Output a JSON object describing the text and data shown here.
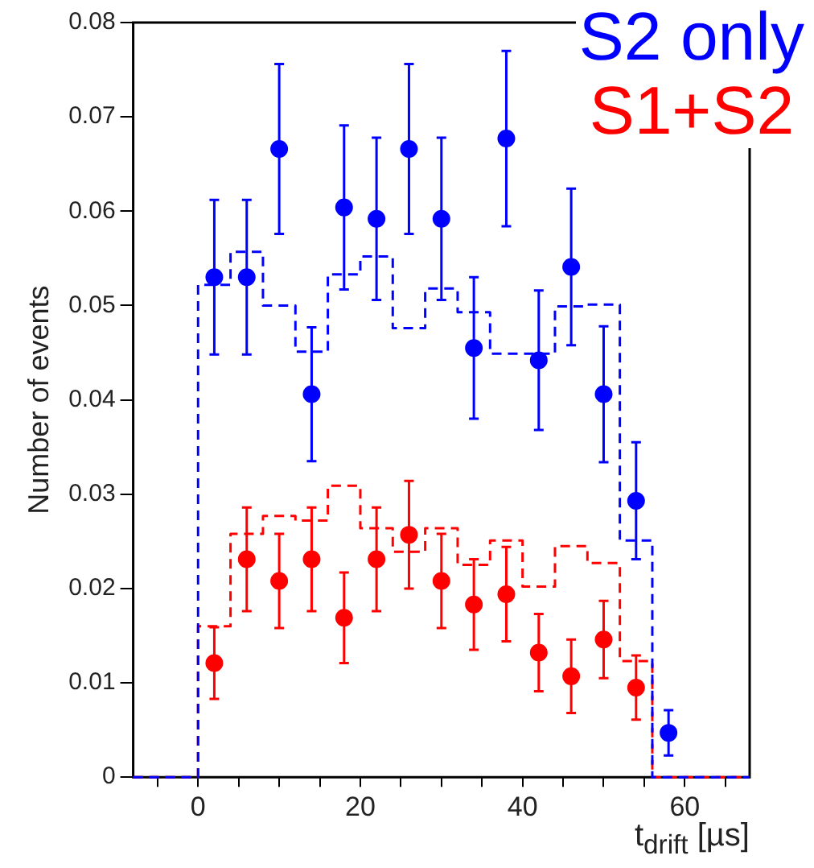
{
  "chart_data": {
    "type": "scatter",
    "xlabel": "t$_{drift}$ [µs]",
    "ylabel": "Number of events",
    "legend": "top right",
    "grid": false,
    "marker": "circle",
    "xlim": [
      -8,
      68
    ],
    "ylim": [
      0,
      0.08
    ],
    "xticks": [
      {
        "value": -5,
        "label": null
      },
      0,
      {
        "value": 5,
        "label": null
      },
      {
        "value": 10,
        "label": null
      },
      {
        "value": 15,
        "label": null
      },
      20,
      {
        "value": 25,
        "label": null
      },
      {
        "value": 30,
        "label": null
      },
      {
        "value": 35,
        "label": null
      },
      40,
      {
        "value": 45,
        "label": null
      },
      {
        "value": 50,
        "label": null
      },
      {
        "value": 55,
        "label": null
      },
      60,
      {
        "value": 65,
        "label": null
      }
    ],
    "yticks": [
      0,
      0.01,
      0.02,
      0.03,
      0.04,
      0.05,
      0.06,
      0.07,
      0.08
    ],
    "series": [
      {
        "type": "step",
        "marker": "none",
        "color": "#0000ff",
        "line_style": "dashed",
        "x": [
          -8,
          -4,
          0,
          4,
          8,
          12,
          16,
          20,
          24,
          28,
          32,
          36,
          40,
          44,
          48,
          52,
          56,
          60,
          64,
          68
        ],
        "values": [
          0,
          0,
          0.0522,
          0.0557,
          0.05,
          0.0451,
          0.0533,
          0.0552,
          0.0476,
          0.0518,
          0.0493,
          0.0449,
          0.0449,
          0.0499,
          0.0501,
          0.0251,
          0,
          0,
          0,
          0
        ]
      },
      {
        "type": "step",
        "marker": "none",
        "color": "#ff0000",
        "line_style": "dashed",
        "x": [
          -8,
          -4,
          0,
          4,
          8,
          12,
          16,
          20,
          24,
          28,
          32,
          36,
          40,
          44,
          48,
          52,
          56,
          60,
          64,
          68
        ],
        "values": [
          0,
          0,
          0.016,
          0.0258,
          0.0277,
          0.0272,
          0.0309,
          0.0264,
          0.0239,
          0.0264,
          0.0225,
          0.0251,
          0.0202,
          0.0245,
          0.0227,
          0.0123,
          0,
          0,
          0,
          0
        ]
      },
      {
        "name": "S2 only",
        "color": "#0000ff",
        "x": [
          2,
          6,
          10,
          14,
          18,
          22,
          26,
          30,
          34,
          38,
          42,
          46,
          50,
          54,
          58
        ],
        "values": [
          0.053,
          0.053,
          0.0666,
          0.0406,
          0.0604,
          0.0592,
          0.0666,
          0.0592,
          0.0455,
          0.0677,
          0.0442,
          0.0541,
          0.0406,
          0.0293,
          0.0047
        ],
        "errors": [
          0.0082,
          0.0082,
          0.009,
          0.0071,
          0.0087,
          0.0086,
          0.009,
          0.0086,
          0.0075,
          0.0093,
          0.0074,
          0.0083,
          0.0072,
          0.0062,
          0.0024
        ]
      },
      {
        "name": "S1+S2",
        "color": "#ff0000",
        "x": [
          2,
          6,
          10,
          14,
          18,
          22,
          26,
          30,
          34,
          38,
          42,
          46,
          50,
          54
        ],
        "values": [
          0.0121,
          0.0231,
          0.0208,
          0.0231,
          0.0169,
          0.0231,
          0.0257,
          0.0208,
          0.0183,
          0.0194,
          0.0132,
          0.0107,
          0.0146,
          0.0095
        ],
        "errors": [
          0.0038,
          0.0055,
          0.005,
          0.0055,
          0.0048,
          0.0055,
          0.0057,
          0.005,
          0.0048,
          0.005,
          0.0041,
          0.0039,
          0.0041,
          0.0034
        ]
      }
    ]
  }
}
